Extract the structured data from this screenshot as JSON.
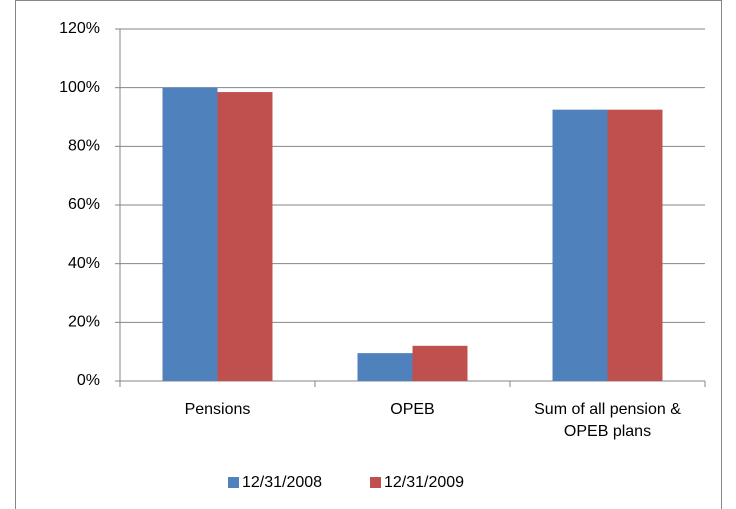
{
  "chart_data": {
    "type": "bar",
    "categories": [
      "Pensions",
      "OPEB",
      "Sum of all pension & OPEB plans"
    ],
    "series": [
      {
        "name": "12/31/2008",
        "color": "#4f81bd",
        "values": [
          100,
          9.5,
          92.5
        ]
      },
      {
        "name": "12/31/2009",
        "color": "#c0504d",
        "values": [
          98.5,
          12,
          92.5
        ]
      }
    ],
    "ylim": [
      0,
      120
    ],
    "yticks": [
      {
        "value": 0,
        "label": "0%"
      },
      {
        "value": 20,
        "label": "20%"
      },
      {
        "value": 40,
        "label": "40%"
      },
      {
        "value": 60,
        "label": "60%"
      },
      {
        "value": 80,
        "label": "80%"
      },
      {
        "value": 100,
        "label": "100%"
      },
      {
        "value": 120,
        "label": "120%"
      }
    ],
    "grid": true,
    "legend": "bottom"
  }
}
